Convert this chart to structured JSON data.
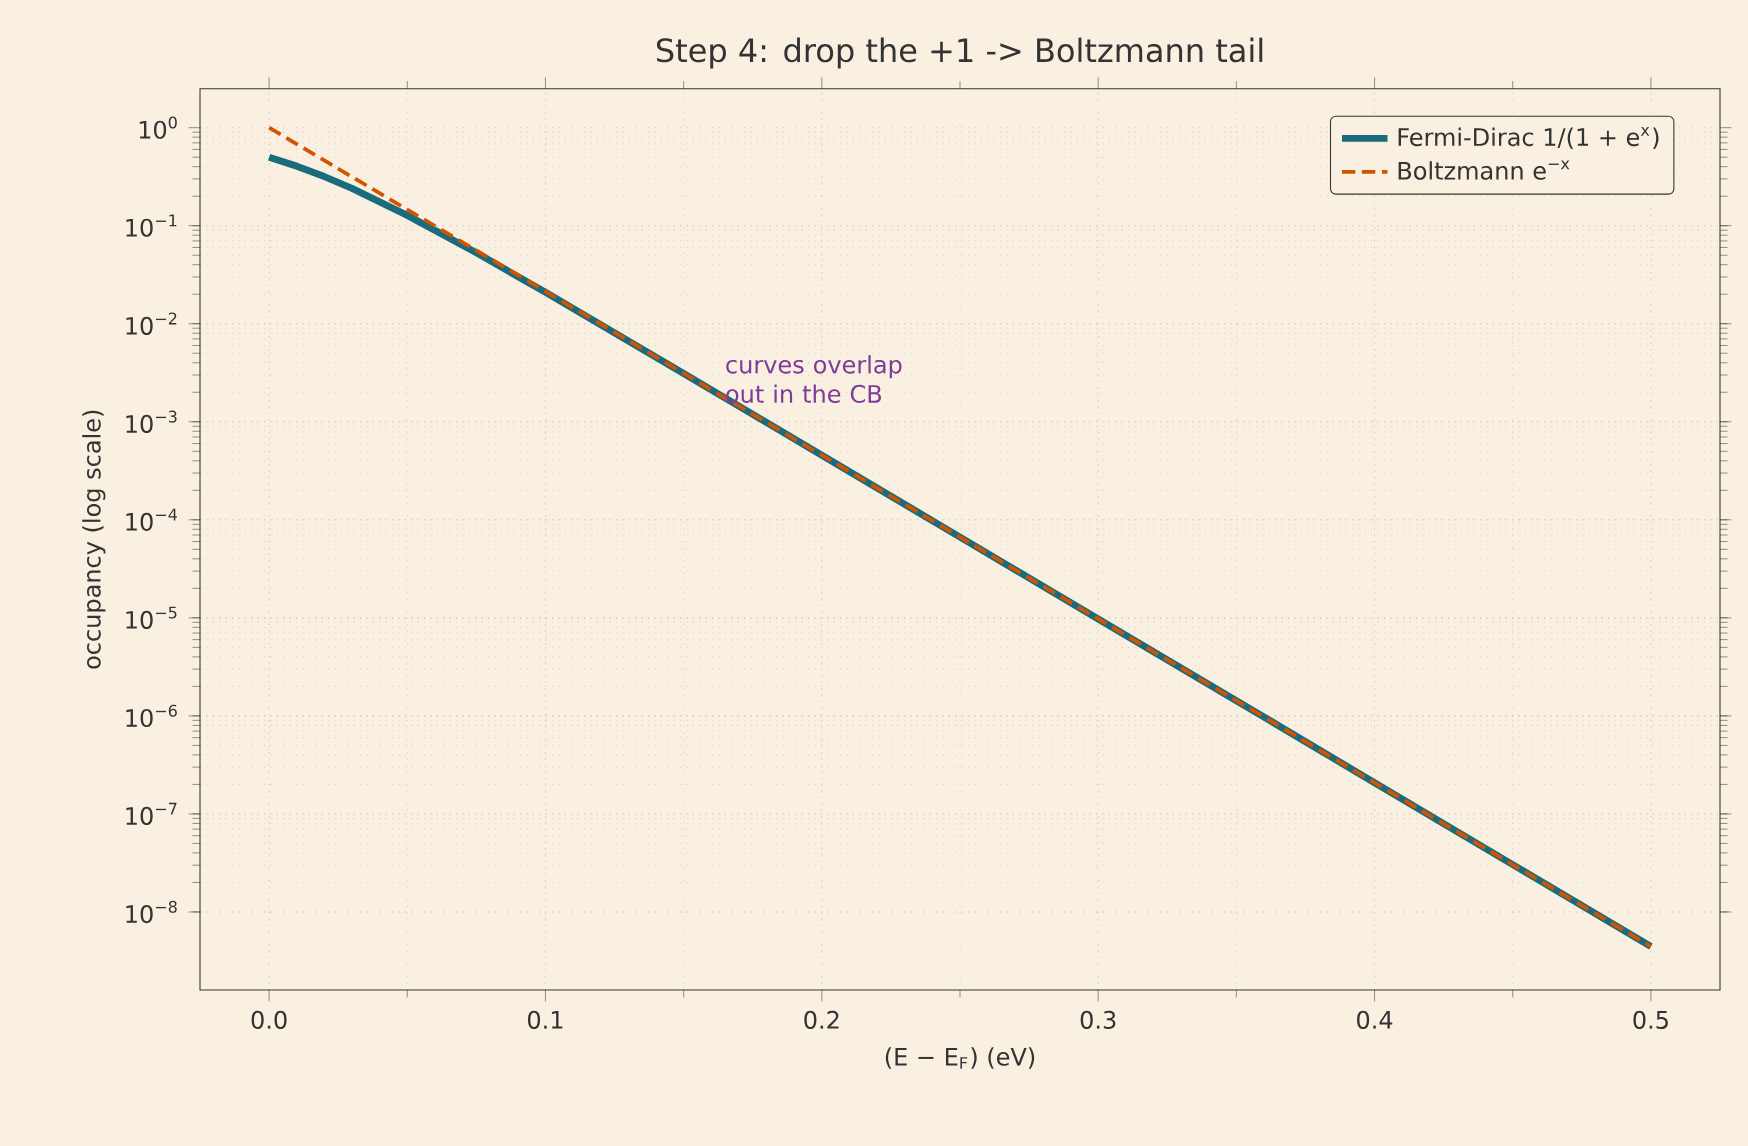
{
  "chart_data": {
    "type": "line",
    "title": "Step 4: drop the +1 -> Boltzmann tail",
    "xlabel": "(E − E$_{F}$)  (eV)",
    "ylabel": "occupancy (log scale)",
    "log": "y",
    "grid": true,
    "legend": "top right",
    "marker": "none",
    "xlim": [
      -0.025,
      0.525
    ],
    "ylim": [
      1.6e-09,
      2.5
    ],
    "xticks": [
      {
        "value": 0,
        "label": "0.0"
      },
      0.1,
      0.2,
      0.3,
      0.4,
      0.5
    ],
    "yticks": [
      {
        "value": 1e-08,
        "label": "10$^{−8}$"
      },
      {
        "value": 1e-07,
        "label": "10$^{−7}$"
      },
      {
        "value": 1e-06,
        "label": "10$^{−6}$"
      },
      {
        "value": 1e-05,
        "label": "10$^{−5}$"
      },
      {
        "value": 0.0001,
        "label": "10$^{−4}$"
      },
      {
        "value": 0.001,
        "label": "10$^{−3}$"
      },
      {
        "value": 0.01,
        "label": "10$^{−2}$"
      },
      {
        "value": 0.1,
        "label": "10$^{−1}$"
      },
      {
        "value": 1,
        "label": "10$^{0}$"
      }
    ],
    "x": [
      0,
      0.01,
      0.02,
      0.03,
      0.05,
      0.075,
      0.1,
      0.15,
      0.2,
      0.25,
      0.3,
      0.35,
      0.4,
      0.45,
      0.5
    ],
    "series": [
      {
        "name": "Fermi-Dirac 1/(1 + e$^{x}$)",
        "color": "#1a6b7c",
        "line_style": "solid",
        "values": [
          0.5,
          0.405,
          0.317,
          0.24,
          0.1275,
          0.0529,
          0.02092,
          0.00311,
          0.000456,
          6.66e-05,
          9.75e-06,
          1.43e-06,
          2.08e-07,
          3.04e-08,
          4.45e-09
        ]
      },
      {
        "name": "Boltzmann e$^{−x}$",
        "color": "#d35400",
        "line_style": "dashed",
        "values": [
          1,
          0.681,
          0.463,
          0.315,
          0.146,
          0.0559,
          0.02137,
          0.00312,
          0.000456,
          6.66e-05,
          9.75e-06,
          1.43e-06,
          2.08e-07,
          3.04e-08,
          4.45e-09
        ]
      }
    ],
    "annotations": [
      "curves overlap out in the CB"
    ]
  }
}
